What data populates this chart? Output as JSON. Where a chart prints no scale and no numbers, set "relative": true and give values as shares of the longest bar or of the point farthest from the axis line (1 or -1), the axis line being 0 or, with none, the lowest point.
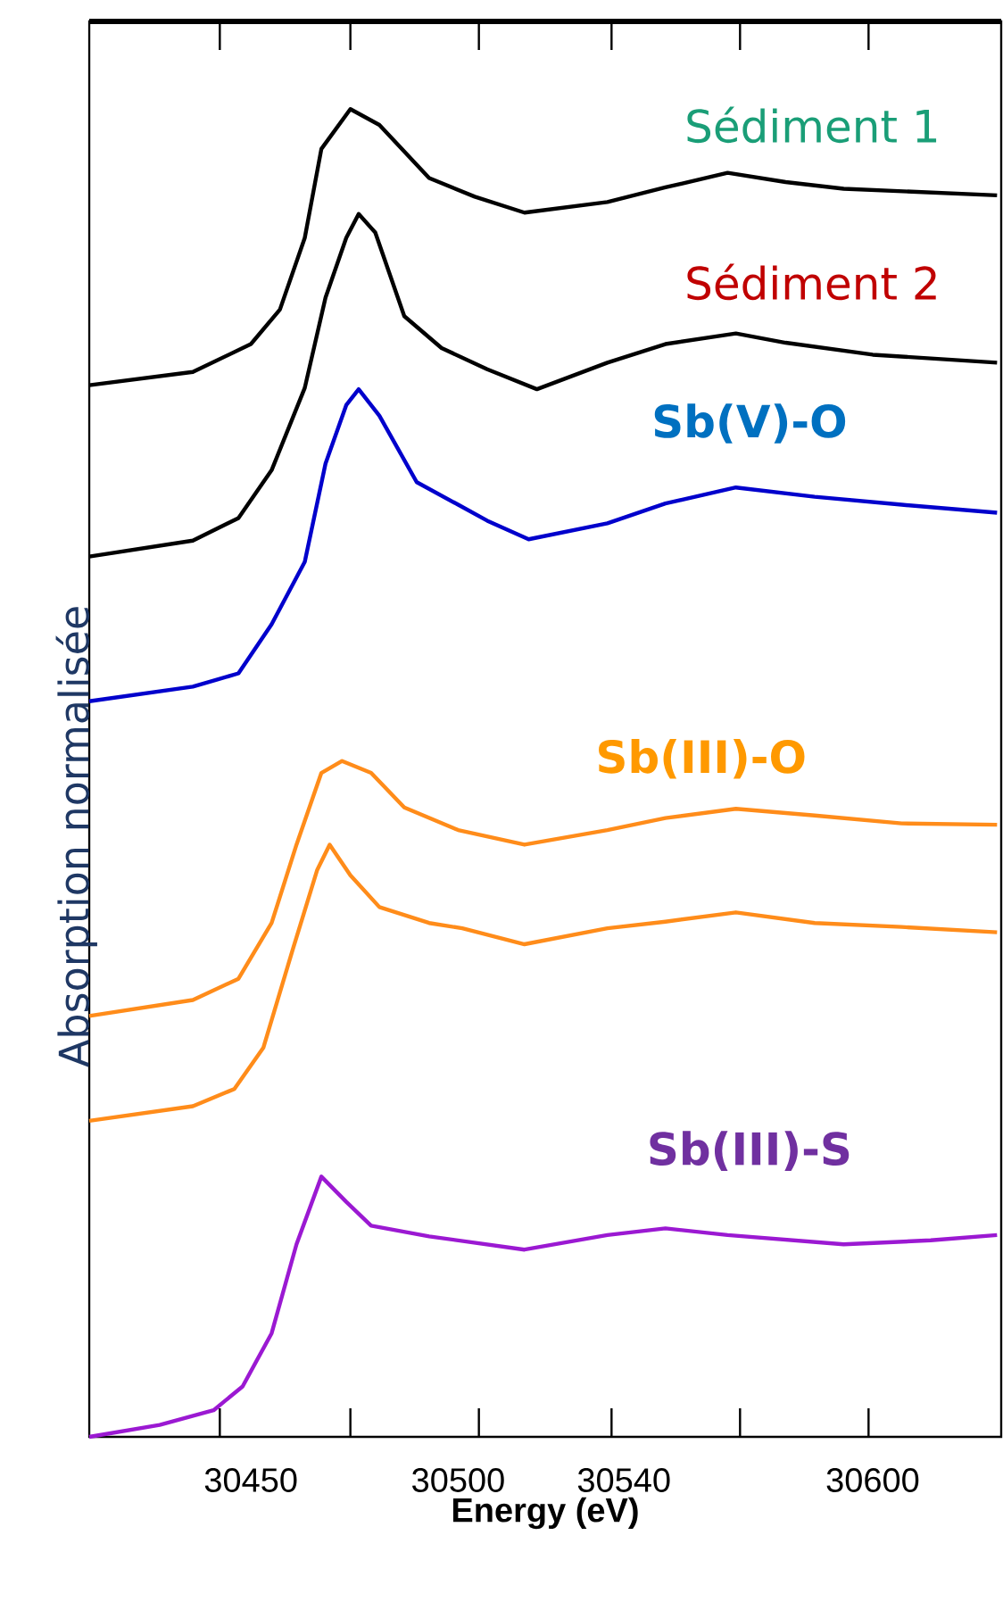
{
  "chart_data": {
    "type": "line",
    "xlabel": "Energy (eV)",
    "ylabel": "Absorption normalisée",
    "relative": true,
    "xlim": [
      30411,
      30631
    ],
    "xticks": [
      30450,
      30500,
      30540,
      30600,
      {
        "value": 30442.5,
        "label": null
      },
      {
        "value": 30474,
        "label": null
      },
      {
        "value": 30505,
        "label": null
      },
      {
        "value": 30537,
        "label": null
      },
      {
        "value": 30568,
        "label": null
      },
      {
        "value": 30599,
        "label": null
      }
    ],
    "series": [
      {
        "name": "Sédiment 1",
        "color": "#000000",
        "x": [
          30411,
          30436,
          30450,
          30457,
          30463,
          30467,
          30474,
          30481,
          30493,
          30504,
          30516,
          30536,
          30550,
          30565,
          30579,
          30593,
          30630
        ],
        "values": [
          0.792,
          0.802,
          0.823,
          0.849,
          0.903,
          0.97,
          1.0,
          0.988,
          0.948,
          0.934,
          0.922,
          0.93,
          0.941,
          0.952,
          0.945,
          0.94,
          0.935
        ]
      },
      {
        "name": "Sédiment 2",
        "color": "#000000",
        "x": [
          30411,
          30436,
          30447,
          30455,
          30463,
          30468,
          30473,
          30476,
          30480,
          30487,
          30496,
          30507,
          30519,
          30536,
          30550,
          30567,
          30579,
          30600,
          30630
        ],
        "values": [
          0.663,
          0.675,
          0.692,
          0.728,
          0.79,
          0.858,
          0.903,
          0.921,
          0.907,
          0.844,
          0.82,
          0.804,
          0.789,
          0.809,
          0.823,
          0.831,
          0.824,
          0.815,
          0.809
        ]
      },
      {
        "name": "Sb(V)-O",
        "color": "#0000cc",
        "x": [
          30411,
          30436,
          30447,
          30455,
          30463,
          30468,
          30473,
          30476,
          30481,
          30490,
          30500,
          30507,
          30517,
          30536,
          30550,
          30567,
          30586,
          30607,
          30630
        ],
        "values": [
          0.554,
          0.565,
          0.575,
          0.612,
          0.659,
          0.733,
          0.777,
          0.789,
          0.769,
          0.719,
          0.702,
          0.69,
          0.676,
          0.688,
          0.703,
          0.715,
          0.708,
          0.702,
          0.696
        ]
      },
      {
        "name": "Sb(III)-O",
        "color": "#ff8c1a",
        "x": [
          30411,
          30436,
          30447,
          30455,
          30461,
          30467,
          30472,
          30479,
          30487,
          30500,
          30516,
          30536,
          30550,
          30567,
          30586,
          30607,
          30630
        ],
        "values": [
          0.317,
          0.329,
          0.345,
          0.387,
          0.446,
          0.5,
          0.509,
          0.5,
          0.474,
          0.457,
          0.446,
          0.457,
          0.466,
          0.473,
          0.468,
          0.462,
          0.461
        ]
      },
      {
        "color": "#ff8c1a",
        "x": [
          30411,
          30436,
          30446,
          30453,
          30460,
          30466,
          30469,
          30474,
          30481,
          30493,
          30501,
          30516,
          30536,
          30550,
          30567,
          30586,
          30607,
          30630
        ],
        "values": [
          0.238,
          0.249,
          0.262,
          0.293,
          0.366,
          0.427,
          0.446,
          0.423,
          0.399,
          0.387,
          0.383,
          0.371,
          0.383,
          0.388,
          0.395,
          0.387,
          0.384,
          0.38
        ]
      },
      {
        "name": "Sb(III)-S",
        "color": "#9b19d2",
        "x": [
          30411,
          30428,
          30441,
          30448,
          30455,
          30461,
          30467,
          30473,
          30479,
          30493,
          30516,
          30536,
          30550,
          30565,
          30593,
          30614,
          30630
        ],
        "values": [
          0.0,
          0.009,
          0.02,
          0.038,
          0.078,
          0.145,
          0.196,
          0.177,
          0.159,
          0.151,
          0.141,
          0.152,
          0.157,
          0.152,
          0.145,
          0.148,
          0.152
        ]
      }
    ]
  }
}
